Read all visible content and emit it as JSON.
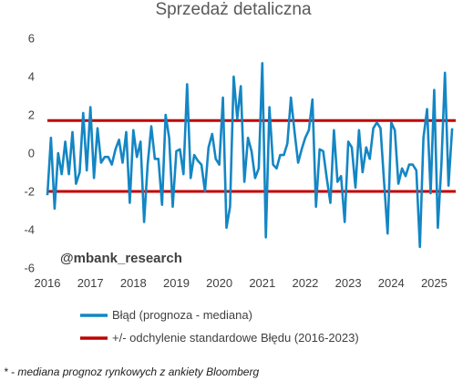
{
  "chart_data": {
    "type": "line",
    "title": "Sprzedaż detaliczna",
    "xlabel": "",
    "ylabel": "",
    "x_ticks": [
      "2016",
      "2017",
      "2018",
      "2019",
      "2020",
      "2021",
      "2022",
      "2023",
      "2024",
      "2025"
    ],
    "y_ticks": [
      "6",
      "4",
      "2",
      "0",
      "-2",
      "-4",
      "-6"
    ],
    "ylim": [
      -6,
      6
    ],
    "xlim": [
      "2016-01",
      "2025-07"
    ],
    "grid": false,
    "legend_position": "bottom",
    "series": [
      {
        "name": "Błąd (prognoza - mediana)",
        "color": "#1486C4",
        "x_start": "2016-01",
        "frequency": "monthly",
        "values": [
          -2.2,
          0.8,
          -2.9,
          0.0,
          -1.1,
          0.6,
          -1.1,
          1.1,
          -1.6,
          -1.0,
          2.1,
          -0.9,
          2.4,
          -1.3,
          1.3,
          -0.5,
          -0.2,
          -0.2,
          -0.6,
          0.2,
          0.7,
          -0.5,
          1.1,
          -2.6,
          1.2,
          -0.2,
          0.6,
          -3.6,
          -0.6,
          1.4,
          -0.3,
          -0.3,
          -2.7,
          2.0,
          0.8,
          -2.8,
          0.1,
          0.2,
          -1.1,
          3.6,
          -1.3,
          -0.1,
          -0.4,
          -0.6,
          -2.0,
          0.3,
          1.0,
          -0.3,
          -0.6,
          2.9,
          -3.9,
          -2.8,
          4.0,
          1.8,
          3.5,
          -1.5,
          0.8,
          0.1,
          -1.3,
          -0.8,
          4.7,
          -4.4,
          2.4,
          -0.6,
          -0.8,
          -0.1,
          -0.1,
          0.5,
          2.9,
          1.1,
          -0.5,
          0.2,
          0.8,
          1.2,
          2.8,
          -2.8,
          0.2,
          0.1,
          -1.3,
          -2.6,
          1.2,
          -1.5,
          -1.2,
          -3.6,
          0.6,
          0.3,
          -1.8,
          1.2,
          -1.0,
          0.3,
          -0.3,
          1.3,
          1.6,
          1.3,
          -1.5,
          -4.2,
          1.6,
          1.2,
          -1.6,
          -0.8,
          -1.2,
          -0.6,
          -0.6,
          -0.9,
          -4.9,
          0.8,
          2.3,
          -2.1,
          3.3,
          -3.9,
          -0.6,
          4.2,
          -1.7,
          1.3
        ]
      },
      {
        "name": "+/- odchylenie standardowe Błędu (2016-2023)",
        "color": "#C00000",
        "upper": 1.7,
        "lower": -2.0
      }
    ]
  },
  "watermark": "@mbank_research",
  "footnote": "* - mediana prognoz rynkowych z ankiety Bloomberg"
}
